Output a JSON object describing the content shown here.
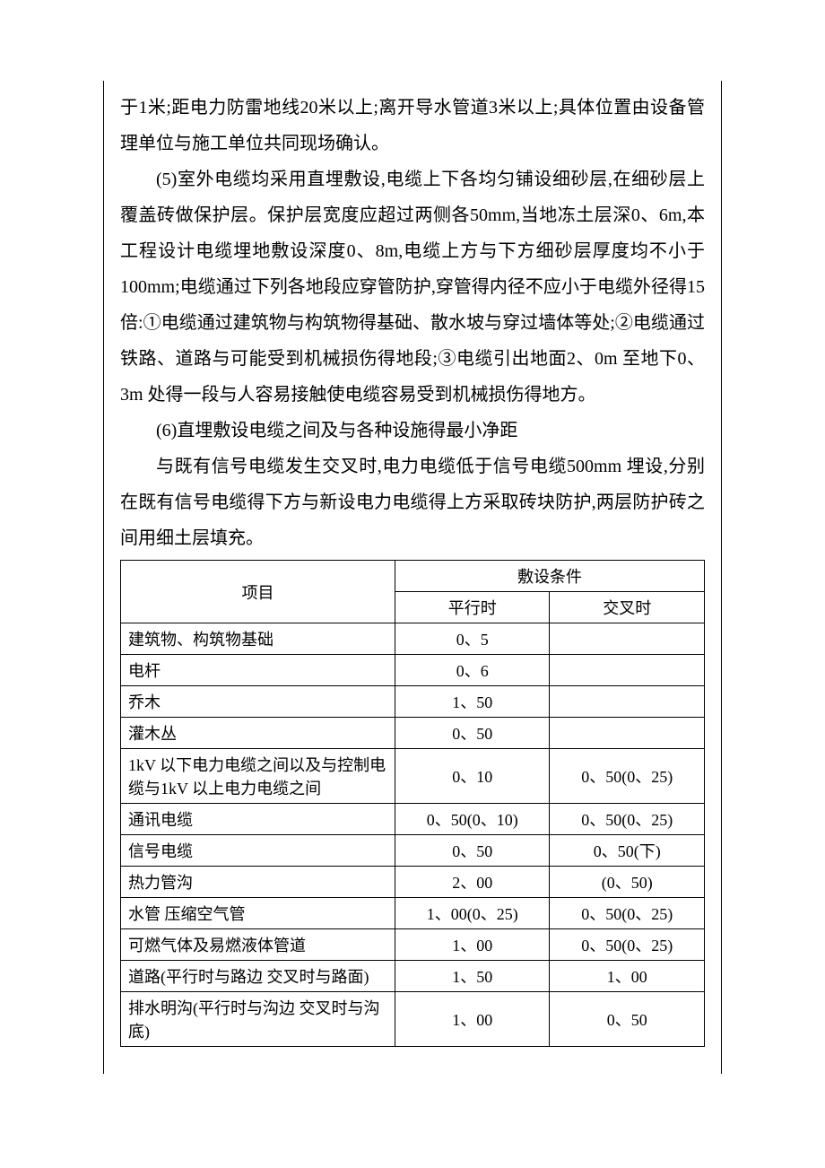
{
  "paragraphs": {
    "p1": "于1米;距电力防雷地线20米以上;离开导水管道3米以上;具体位置由设备管理单位与施工单位共同现场确认。",
    "p2": "(5)室外电缆均采用直埋敷设,电缆上下各均匀铺设细砂层,在细砂层上覆盖砖做保护层。保护层宽度应超过两侧各50mm,当地冻土层深0、6m,本工程设计电缆埋地敷设深度0、8m,电缆上方与下方细砂层厚度均不小于100mm;电缆通过下列各地段应穿管防护,穿管得内径不应小于电缆外径得15倍:①电缆通过建筑物与构筑物得基础、散水坡与穿过墙体等处;②电缆通过铁路、道路与可能受到机械损伤得地段;③电缆引出地面2、0m 至地下0、3m 处得一段与人容易接触使电缆容易受到机械损伤得地方。",
    "p3": "(6)直埋敷设电缆之间及与各种设施得最小净距",
    "p4": "与既有信号电缆发生交叉时,电力电缆低于信号电缆500mm 埋设,分别在既有信号电缆得下方与新设电力电缆得上方采取砖块防护,两层防护砖之间用细土层填充。"
  },
  "table": {
    "header": {
      "item": "项目",
      "condition": "敷设条件",
      "parallel": "平行时",
      "cross": "交叉时"
    },
    "rows": [
      {
        "label": "建筑物、构筑物基础",
        "parallel": "0、5",
        "cross": ""
      },
      {
        "label": "电杆",
        "parallel": "0、6",
        "cross": ""
      },
      {
        "label": "乔木",
        "parallel": "1、50",
        "cross": ""
      },
      {
        "label": "灌木丛",
        "parallel": "0、50",
        "cross": ""
      },
      {
        "label": "1kV 以下电力电缆之间以及与控制电缆与1kV 以上电力电缆之间",
        "parallel": "0、10",
        "cross": "0、50(0、25)"
      },
      {
        "label": "通讯电缆",
        "parallel": "0、50(0、10)",
        "cross": "0、50(0、25)"
      },
      {
        "label": "信号电缆",
        "parallel": "0、50",
        "cross": "0、50(下)"
      },
      {
        "label": "热力管沟",
        "parallel": "2、00",
        "cross": "(0、50)"
      },
      {
        "label": "水管 压缩空气管",
        "parallel": "1、00(0、25)",
        "cross": "0、50(0、25)"
      },
      {
        "label": "可燃气体及易燃液体管道",
        "parallel": "1、00",
        "cross": "0、50(0、25)"
      },
      {
        "label": "道路(平行时与路边 交叉时与路面)",
        "parallel": "1、50",
        "cross": "1、00"
      },
      {
        "label": "排水明沟(平行时与沟边 交叉时与沟底)",
        "parallel": "1、00",
        "cross": "0、50"
      }
    ]
  }
}
